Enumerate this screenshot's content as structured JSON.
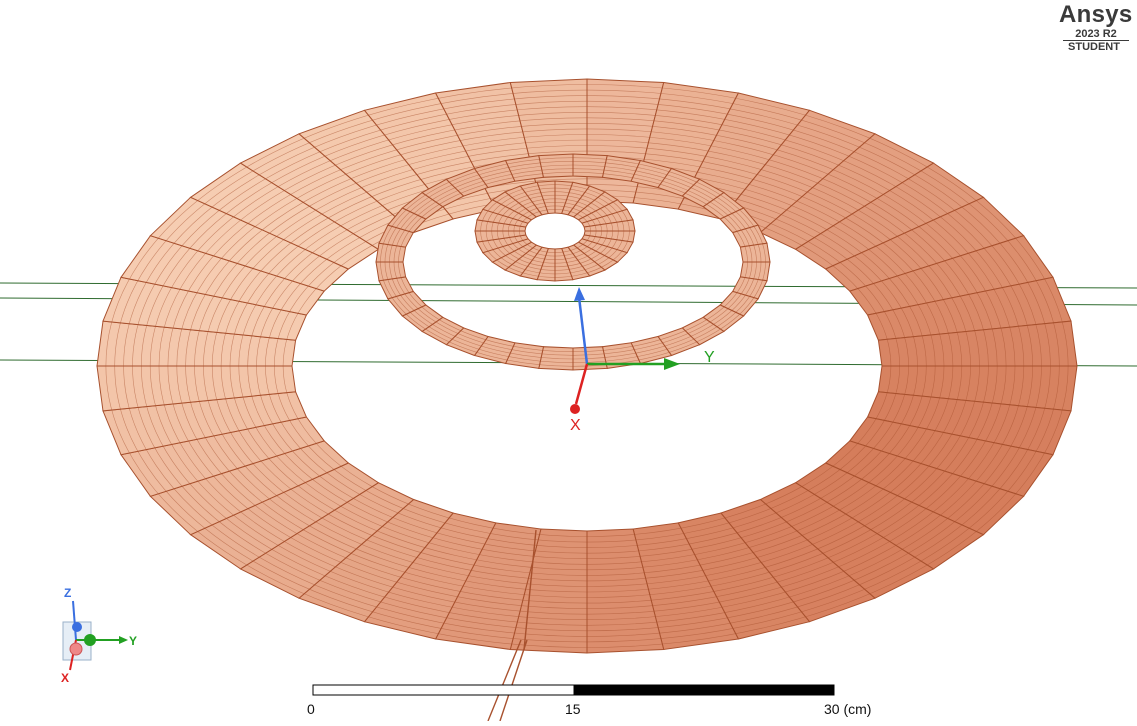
{
  "brand": {
    "name": "Ansys",
    "version": "2023 R2",
    "edition": "STUDENT"
  },
  "axes": {
    "main": {
      "x_label": "X",
      "y_label": "Y"
    },
    "triad": {
      "x_label": "X",
      "y_label": "Y",
      "z_label": "Z"
    }
  },
  "scale": {
    "labels": [
      "0",
      "15",
      "30 (cm)"
    ]
  },
  "colors": {
    "coil_light": "#f6cdb2",
    "coil_dark": "#cf6f4c",
    "coil_line": "#a8512e",
    "axis_x": "#dd2222",
    "axis_y": "#22a022",
    "axis_z": "#3a6fe0",
    "guide_line": "#2f6b2f"
  }
}
